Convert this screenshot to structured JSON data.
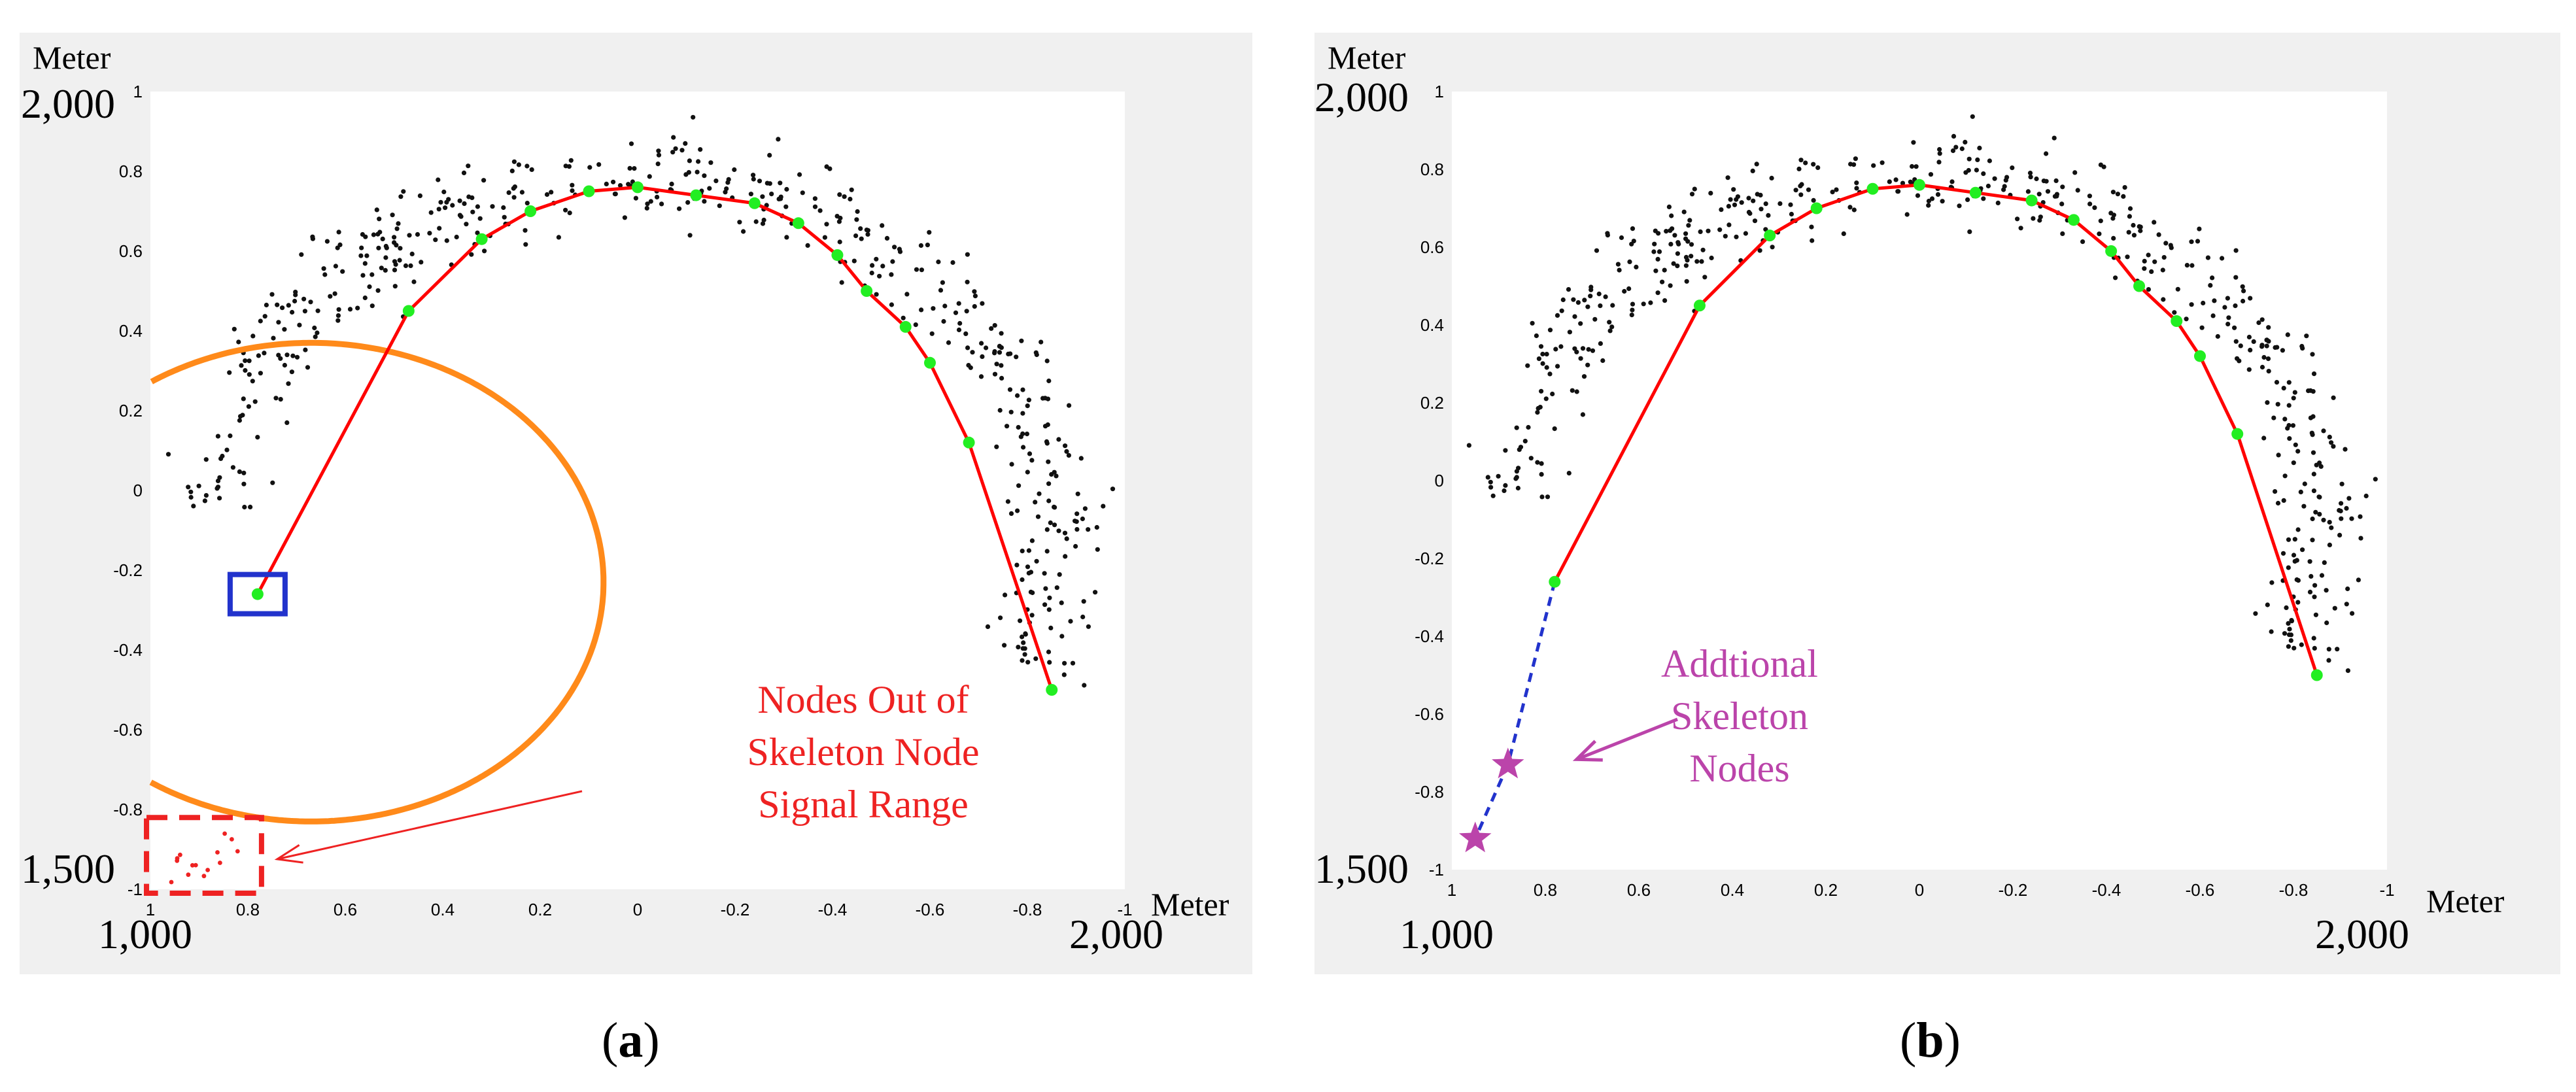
{
  "chart_data": [
    {
      "panel": "a",
      "type": "scatter",
      "caption": "a",
      "unit_label": "Meter",
      "xlim": [
        1,
        -1
      ],
      "ylim": [
        -1,
        1
      ],
      "xticks": [
        1,
        0.8,
        0.6,
        0.4,
        0.2,
        0,
        -0.2,
        -0.4,
        -0.6,
        -0.8,
        -1
      ],
      "xtick_labels": [
        "1",
        "0.8",
        "0.6",
        "0.4",
        "0.2",
        "0",
        "-0.2",
        "-0.4",
        "-0.6",
        "-0.8",
        "-1"
      ],
      "yticks": [
        1,
        0.8,
        0.6,
        0.4,
        0.2,
        0,
        -0.2,
        -0.4,
        -0.6,
        -0.8,
        -1
      ],
      "ytick_labels": [
        "1",
        "0.8",
        "0.6",
        "0.4",
        "0.2",
        "0",
        "-0.2",
        "-0.4",
        "-0.6",
        "-0.8",
        "-1"
      ],
      "corner_labels": {
        "y_top": "2,000",
        "y_bottom": "1,500",
        "x_left": "1,000",
        "x_right": "2,000"
      },
      "skeleton": {
        "x": [
          0.78,
          0.47,
          0.32,
          0.22,
          0.1,
          0,
          -0.12,
          -0.24,
          -0.33,
          -0.41,
          -0.47,
          -0.55,
          -0.6,
          -0.68,
          -0.85
        ],
        "y": [
          -0.26,
          0.45,
          0.63,
          0.7,
          0.75,
          0.76,
          0.74,
          0.72,
          0.67,
          0.59,
          0.5,
          0.41,
          0.32,
          0.12,
          -0.5
        ]
      },
      "circle": {
        "cx": 0.67,
        "cy": -0.23,
        "r": 0.6
      },
      "selected_node": {
        "x": 0.78,
        "y": -0.26
      },
      "out_of_range_region": {
        "x": [
          1,
          0.78
        ],
        "y": [
          -1,
          -0.82
        ]
      },
      "annotation_lines": [
        "Nodes Out of",
        "Skeleton Node",
        "Signal Range"
      ],
      "colors": {
        "skeleton": "#ff0000",
        "node": "#22ee22",
        "points": "#111111",
        "circle": "#ff8a1a",
        "selected_box": "#2233cc",
        "out_of_range": "#ee2222",
        "annotation": "#ee2222"
      }
    },
    {
      "panel": "b",
      "type": "scatter",
      "caption": "b",
      "unit_label": "Meter",
      "xlim": [
        1,
        -1
      ],
      "ylim": [
        -1,
        1
      ],
      "xticks": [
        1,
        0.8,
        0.6,
        0.4,
        0.2,
        0,
        -0.2,
        -0.4,
        -0.6,
        -0.8,
        -1
      ],
      "xtick_labels": [
        "1",
        "0.8",
        "0.6",
        "0.4",
        "0.2",
        "0",
        "-0.2",
        "-0.4",
        "-0.6",
        "-0.8",
        "-1"
      ],
      "yticks": [
        1,
        0.8,
        0.6,
        0.4,
        0.2,
        0,
        -0.2,
        -0.4,
        -0.6,
        -0.8,
        -1
      ],
      "ytick_labels": [
        "1",
        "0.8",
        "0.6",
        "0.4",
        "0.2",
        "0",
        "-0.2",
        "-0.4",
        "-0.6",
        "-0.8",
        "-1"
      ],
      "corner_labels": {
        "y_top": "2,000",
        "y_bottom": "1,500",
        "x_left": "1,000",
        "x_right": "2,000"
      },
      "skeleton": {
        "x": [
          0.78,
          0.47,
          0.32,
          0.22,
          0.1,
          0,
          -0.12,
          -0.24,
          -0.33,
          -0.41,
          -0.47,
          -0.55,
          -0.6,
          -0.68,
          -0.85
        ],
        "y": [
          -0.26,
          0.45,
          0.63,
          0.7,
          0.75,
          0.76,
          0.74,
          0.72,
          0.67,
          0.59,
          0.5,
          0.41,
          0.32,
          0.12,
          -0.5
        ]
      },
      "additional_nodes": {
        "x": [
          0.88,
          0.95
        ],
        "y": [
          -0.73,
          -0.92
        ]
      },
      "annotation_lines": [
        "Addtional",
        "Skeleton",
        "Nodes"
      ],
      "colors": {
        "skeleton": "#ff0000",
        "node": "#22ee22",
        "points": "#111111",
        "extension": "#2233cc",
        "additional": "#bb44aa",
        "annotation": "#bb44aa"
      }
    }
  ]
}
